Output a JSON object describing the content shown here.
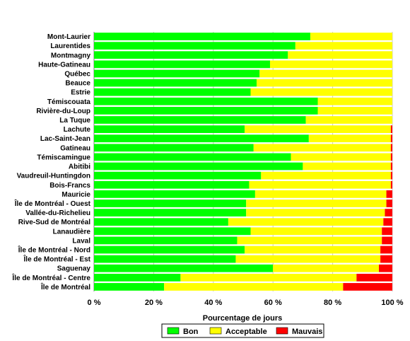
{
  "chart_data": {
    "type": "bar",
    "orientation": "horizontal",
    "stacked": true,
    "title": "",
    "xlabel": "Pourcentage de jours",
    "ylabel": "",
    "xlim": [
      0,
      100
    ],
    "xticks": [
      "0 %",
      "20 %",
      "40 %",
      "60 %",
      "80 %",
      "100 %"
    ],
    "grid": true,
    "legend_position": "bottom",
    "categories": [
      "Mont-Laurier",
      "Laurentides",
      "Montmagny",
      "Haute-Gatineau",
      "Québec",
      "Beauce",
      "Estrie",
      "Témiscouata",
      "Rivière-du-Loup",
      "La Tuque",
      "Lachute",
      "Lac-Saint-Jean",
      "Gatineau",
      "Témiscamingue",
      "Abitibi",
      "Vaudreuil-Huntingdon",
      "Bois-Francs",
      "Mauricie",
      "Île de Montréal - Ouest",
      "Vallée-du-Richelieu",
      "Rive-Sud de Montréal",
      "Lanaudière",
      "Laval",
      "Île de Montréal - Nord",
      "Île de Montréal - Est",
      "Saguenay",
      "Île de Montréal - Centre",
      "Île de Montréal"
    ],
    "series": [
      {
        "name": "Bon",
        "color": "#00ff00",
        "values": [
          72.5,
          67.5,
          65,
          59,
          55.5,
          54.5,
          52.5,
          75,
          75,
          71,
          50.5,
          72,
          53.5,
          66,
          70,
          56,
          52,
          54,
          51,
          51,
          45,
          52.5,
          48,
          50.5,
          47.5,
          60,
          29,
          23.5
        ]
      },
      {
        "name": "Acceptable",
        "color": "#ffff00",
        "values": [
          27.5,
          32.5,
          35,
          41,
          44.5,
          45.5,
          47.5,
          25,
          25,
          29,
          49,
          27.5,
          46,
          33.5,
          29.5,
          43.5,
          47.5,
          44,
          47,
          46.5,
          52,
          44,
          48.5,
          45.5,
          48.5,
          35.5,
          59,
          60
        ]
      },
      {
        "name": "Mauvais",
        "color": "#ff0000",
        "values": [
          0,
          0,
          0,
          0,
          0,
          0,
          0,
          0,
          0,
          0,
          0.5,
          0.5,
          0.5,
          0.5,
          0.5,
          0.5,
          0.5,
          2,
          2,
          2.5,
          3,
          3.5,
          3.5,
          4,
          4,
          4.5,
          12,
          16.5
        ]
      }
    ]
  }
}
